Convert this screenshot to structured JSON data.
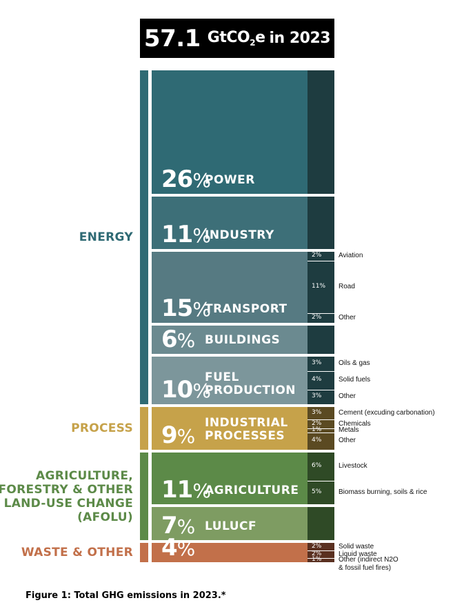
{
  "title": {
    "value": "57.1",
    "unit_pre": "GtCO",
    "unit_sub": "2",
    "unit_post": "e",
    "year": "in 2023"
  },
  "colors": {
    "energy": "#2f6a74",
    "energy_dark": "#1e3c40",
    "process": "#c6a24a",
    "process_dark": "#5b4a22",
    "afolu": "#5c8a48",
    "afolu_dark": "#2f4a26",
    "waste": "#c2704a",
    "waste_dark": "#5a3020"
  },
  "groups": [
    {
      "label": "ENERGY",
      "color": "#2f6a74"
    },
    {
      "label": "PROCESS",
      "color": "#c6a24a"
    },
    {
      "label": "AGRICULTURE,\nFORESTRY & OTHER\nLAND-USE CHANGE\n(AFOLU)",
      "color": "#5c8a48"
    },
    {
      "label": "WASTE & OTHER",
      "color": "#c2704a"
    }
  ],
  "chart_data": {
    "type": "bar",
    "title": "57.1 GtCO2e in 2023",
    "total": 57.1,
    "unit": "GtCO2e",
    "sectors": [
      {
        "group": "ENERGY",
        "name": "POWER",
        "percent": 26,
        "pct_label": "26",
        "color": "#2f6a74",
        "subs": []
      },
      {
        "group": "ENERGY",
        "name": "INDUSTRY",
        "percent": 11,
        "pct_label": "11",
        "color": "#3d6f78",
        "subs": []
      },
      {
        "group": "ENERGY",
        "name": "TRANSPORT",
        "percent": 15,
        "pct_label": "15",
        "color": "#567a82",
        "subs": [
          {
            "name": "Aviation",
            "percent": 2,
            "label": "2"
          },
          {
            "name": "Road",
            "percent": 11,
            "label": "11"
          },
          {
            "name": "Other",
            "percent": 2,
            "label": "2"
          }
        ]
      },
      {
        "group": "ENERGY",
        "name": "BUILDINGS",
        "percent": 6,
        "pct_label": "6",
        "color": "#6b8a90",
        "subs": []
      },
      {
        "group": "ENERGY",
        "name": "FUEL\nPRODUCTION",
        "percent": 10,
        "pct_label": "10",
        "color": "#7c969b",
        "subs": [
          {
            "name": "Oils & gas",
            "percent": 3,
            "label": "3"
          },
          {
            "name": "Solid fuels",
            "percent": 4,
            "label": "4"
          },
          {
            "name": "Other",
            "percent": 3,
            "label": "3"
          }
        ]
      },
      {
        "group": "PROCESS",
        "name": "INDUSTRIAL\nPROCESSES",
        "percent": 9,
        "pct_label": "9",
        "color": "#c6a24a",
        "subs": [
          {
            "name": "Cement (excuding carbonation)",
            "percent": 3,
            "label": "3"
          },
          {
            "name": "Chemicals",
            "percent": 2,
            "label": "2"
          },
          {
            "name": "Metals",
            "percent": 1,
            "label": "1"
          },
          {
            "name": "Other",
            "percent": 4,
            "label": "4"
          }
        ]
      },
      {
        "group": "AFOLU",
        "name": "AGRICULTURE",
        "percent": 11,
        "pct_label": "11",
        "color": "#5c8a48",
        "subs": [
          {
            "name": "Livestock",
            "percent": 6,
            "label": "6"
          },
          {
            "name": "Biomass burning, soils & rice",
            "percent": 5,
            "label": "5"
          }
        ]
      },
      {
        "group": "AFOLU",
        "name": "LULUCF",
        "percent": 7,
        "pct_label": "7",
        "color": "#7e9c62",
        "subs": []
      },
      {
        "group": "WASTE & OTHER",
        "name": "",
        "percent": 4,
        "pct_label": "4",
        "color": "#c2704a",
        "subs": [
          {
            "name": "Solid waste",
            "percent": 2,
            "label": "2"
          },
          {
            "name": "Liquid waste",
            "percent": 2,
            "label": "2"
          },
          {
            "name": "Other (indirect N2O\n& fossil fuel fires)",
            "percent": 1,
            "label": "1"
          }
        ]
      }
    ]
  },
  "caption": "Figure 1: Total GHG emissions in 2023.*"
}
